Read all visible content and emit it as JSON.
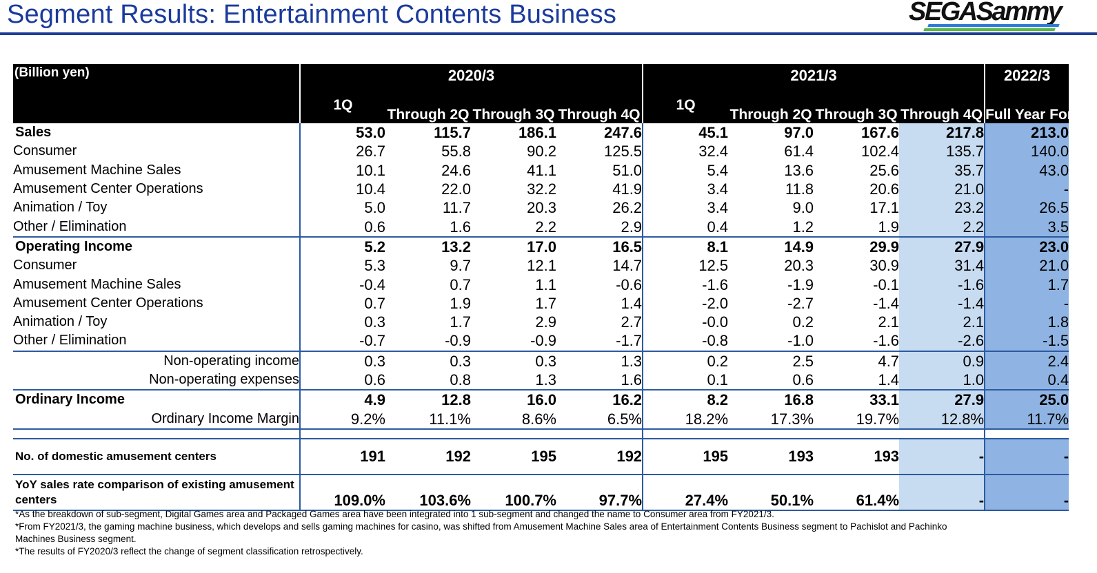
{
  "title": "Segment Results: Entertainment Contents Business",
  "logo_text": "SEGASammy",
  "colors": {
    "title": "#1a3a9c",
    "header_bg": "#000000",
    "result_highlight": "#c7dbf1",
    "forecast_highlight": "#8fb4e3",
    "rule": "#2c5aa0"
  },
  "table": {
    "unit": "(Billion yen)",
    "years": [
      "2020/3",
      "2021/3",
      "2022/3"
    ],
    "sub_headers": [
      "1Q",
      "Through 2Q",
      "Through 3Q",
      "Through 4Q",
      "1Q",
      "Through 2Q",
      "Through 3Q",
      "Through 4Q",
      "Full Year Forecast"
    ],
    "rows": [
      {
        "label": "Sales",
        "values": [
          "53.0",
          "115.7",
          "186.1",
          "247.6",
          "45.1",
          "97.0",
          "167.6",
          "217.8",
          "213.0"
        ]
      },
      {
        "label": "Consumer",
        "values": [
          "26.7",
          "55.8",
          "90.2",
          "125.5",
          "32.4",
          "61.4",
          "102.4",
          "135.7",
          "140.0"
        ]
      },
      {
        "label": "Amusement Machine Sales",
        "values": [
          "10.1",
          "24.6",
          "41.1",
          "51.0",
          "5.4",
          "13.6",
          "25.6",
          "35.7",
          "43.0"
        ]
      },
      {
        "label": "Amusement Center Operations",
        "values": [
          "10.4",
          "22.0",
          "32.2",
          "41.9",
          "3.4",
          "11.8",
          "20.6",
          "21.0",
          "-"
        ]
      },
      {
        "label": "Animation / Toy",
        "values": [
          "5.0",
          "11.7",
          "20.3",
          "26.2",
          "3.4",
          "9.0",
          "17.1",
          "23.2",
          "26.5"
        ]
      },
      {
        "label": "Other / Elimination",
        "values": [
          "0.6",
          "1.6",
          "2.2",
          "2.9",
          "0.4",
          "1.2",
          "1.9",
          "2.2",
          "3.5"
        ]
      },
      {
        "label": "Operating Income",
        "values": [
          "5.2",
          "13.2",
          "17.0",
          "16.5",
          "8.1",
          "14.9",
          "29.9",
          "27.9",
          "23.0"
        ]
      },
      {
        "label": "Consumer",
        "values": [
          "5.3",
          "9.7",
          "12.1",
          "14.7",
          "12.5",
          "20.3",
          "30.9",
          "31.4",
          "21.0"
        ]
      },
      {
        "label": "Amusement Machine Sales",
        "values": [
          "-0.4",
          "0.7",
          "1.1",
          "-0.6",
          "-1.6",
          "-1.9",
          "-0.1",
          "-1.6",
          "1.7"
        ]
      },
      {
        "label": "Amusement Center Operations",
        "values": [
          "0.7",
          "1.9",
          "1.7",
          "1.4",
          "-2.0",
          "-2.7",
          "-1.4",
          "-1.4",
          "-"
        ]
      },
      {
        "label": "Animation / Toy",
        "values": [
          "0.3",
          "1.7",
          "2.9",
          "2.7",
          "-0.0",
          "0.2",
          "2.1",
          "2.1",
          "1.8"
        ]
      },
      {
        "label": "Other / Elimination",
        "values": [
          "-0.7",
          "-0.9",
          "-0.9",
          "-1.7",
          "-0.8",
          "-1.0",
          "-1.6",
          "-2.6",
          "-1.5"
        ]
      },
      {
        "label": "Non-operating income",
        "values": [
          "0.3",
          "0.3",
          "0.3",
          "1.3",
          "0.2",
          "2.5",
          "4.7",
          "0.9",
          "2.4"
        ]
      },
      {
        "label": "Non-operating expenses",
        "values": [
          "0.6",
          "0.8",
          "1.3",
          "1.6",
          "0.1",
          "0.6",
          "1.4",
          "1.0",
          "0.4"
        ]
      },
      {
        "label": "Ordinary Income",
        "values": [
          "4.9",
          "12.8",
          "16.0",
          "16.2",
          "8.2",
          "16.8",
          "33.1",
          "27.9",
          "25.0"
        ]
      },
      {
        "label": "Ordinary Income Margin",
        "values": [
          "9.2%",
          "11.1%",
          "8.6%",
          "6.5%",
          "18.2%",
          "17.3%",
          "19.7%",
          "12.8%",
          "11.7%"
        ]
      },
      {
        "label": "No. of domestic amusement centers",
        "values": [
          "191",
          "192",
          "195",
          "192",
          "195",
          "193",
          "193",
          "-",
          "-"
        ]
      },
      {
        "label": "YoY sales rate comparison of existing amusement centers",
        "values": [
          "109.0%",
          "103.6%",
          "100.7%",
          "97.7%",
          "27.4%",
          "50.1%",
          "61.4%",
          "-",
          "-"
        ]
      }
    ]
  },
  "notes": [
    "*As the breakdown of sub-segment, Digital Games area and Packaged Games area have been integrated into 1 sub-segment and changed the name to Consumer area from FY2021/3.",
    "*From FY2021/3, the gaming machine business, which develops and sells gaming machines for casino, was shifted from Amusement Machine Sales area of Entertainment Contents Business segment to Pachislot and Pachinko",
    " Machines Business segment.",
    "*The results of FY2020/3 reflect the change of segment classification retrospectively."
  ]
}
